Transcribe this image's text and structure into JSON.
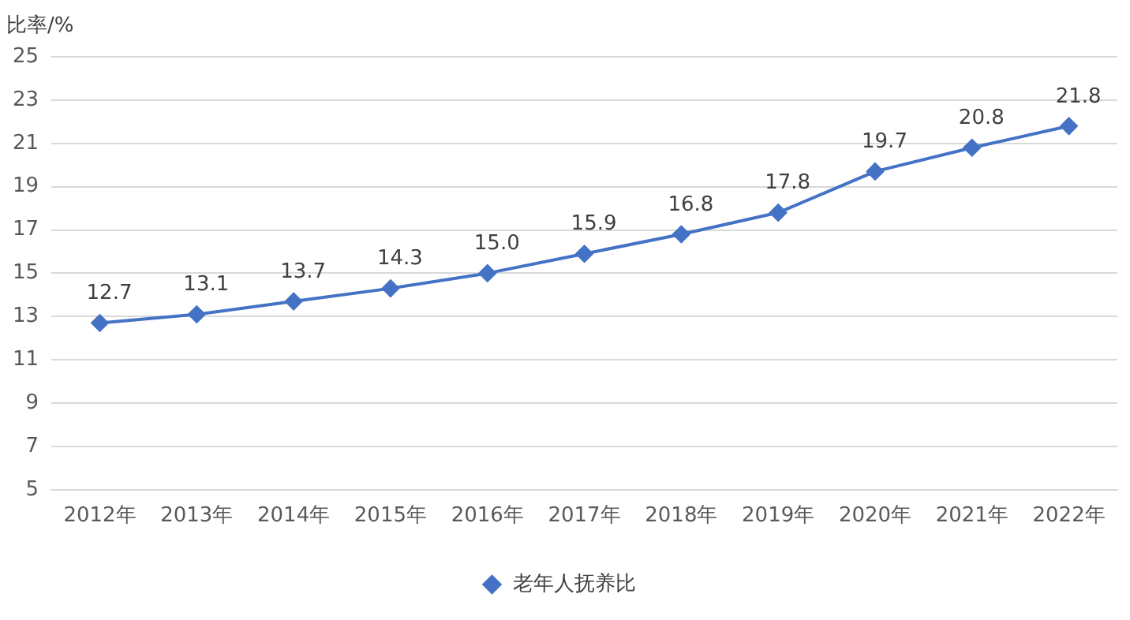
{
  "chart_data": {
    "type": "line",
    "ylabel": "比率/%",
    "categories": [
      "2012年",
      "2013年",
      "2014年",
      "2015年",
      "2016年",
      "2017年",
      "2018年",
      "2019年",
      "2020年",
      "2021年",
      "2022年"
    ],
    "series": [
      {
        "name": "老年人抚养比",
        "color": "#4472c4",
        "values": [
          12.7,
          13.1,
          13.7,
          14.3,
          15.0,
          15.9,
          16.8,
          17.8,
          19.7,
          20.8,
          21.8
        ],
        "value_labels": [
          "12.7",
          "13.1",
          "13.7",
          "14.3",
          "15.0",
          "15.9",
          "16.8",
          "17.8",
          "19.7",
          "20.8",
          "21.8"
        ]
      }
    ],
    "ylim": [
      5,
      25
    ],
    "yticks": [
      5,
      7,
      9,
      11,
      13,
      15,
      17,
      19,
      21,
      23,
      25
    ],
    "grid": "y",
    "legend": "bottom",
    "marker": "diamond",
    "line_style": "solid"
  }
}
